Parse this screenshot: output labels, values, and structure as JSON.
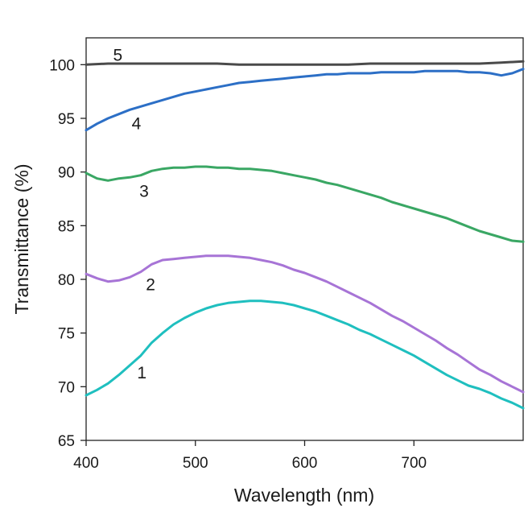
{
  "chart_data": {
    "type": "line",
    "title": "",
    "xlabel": "Wavelength (nm)",
    "ylabel": "Transmittance (%)",
    "xlim": [
      400,
      800
    ],
    "ylim": [
      65,
      102.5
    ],
    "xticks": [
      400,
      500,
      600,
      700
    ],
    "yticks": [
      65,
      70,
      75,
      80,
      85,
      90,
      95,
      100
    ],
    "grid": false,
    "legend": "none",
    "series": [
      {
        "name": "1",
        "color": "#1fbfbf",
        "label_at": [
          451,
          71.3
        ],
        "x": [
          400,
          410,
          420,
          430,
          440,
          450,
          460,
          470,
          480,
          490,
          500,
          510,
          520,
          530,
          540,
          550,
          560,
          570,
          580,
          590,
          600,
          610,
          620,
          630,
          640,
          650,
          660,
          670,
          680,
          690,
          700,
          710,
          720,
          730,
          740,
          750,
          760,
          770,
          780,
          790,
          800
        ],
        "y": [
          69.2,
          69.7,
          70.3,
          71.1,
          72.0,
          72.9,
          74.1,
          75.0,
          75.8,
          76.4,
          76.9,
          77.3,
          77.6,
          77.8,
          77.9,
          78.0,
          78.0,
          77.9,
          77.8,
          77.6,
          77.3,
          77.0,
          76.6,
          76.2,
          75.8,
          75.3,
          74.9,
          74.4,
          73.9,
          73.4,
          72.9,
          72.3,
          71.7,
          71.1,
          70.6,
          70.1,
          69.8,
          69.4,
          68.9,
          68.5,
          68.0
        ]
      },
      {
        "name": "2",
        "color": "#a774d6",
        "label_at": [
          459,
          79.5
        ],
        "x": [
          400,
          410,
          420,
          430,
          440,
          450,
          460,
          470,
          480,
          490,
          500,
          510,
          520,
          530,
          540,
          550,
          560,
          570,
          580,
          590,
          600,
          610,
          620,
          630,
          640,
          650,
          660,
          670,
          680,
          690,
          700,
          710,
          720,
          730,
          740,
          750,
          760,
          770,
          780,
          790,
          800
        ],
        "y": [
          80.5,
          80.1,
          79.8,
          79.9,
          80.2,
          80.7,
          81.4,
          81.8,
          81.9,
          82.0,
          82.1,
          82.2,
          82.2,
          82.2,
          82.1,
          82.0,
          81.8,
          81.6,
          81.3,
          80.9,
          80.6,
          80.2,
          79.8,
          79.3,
          78.8,
          78.3,
          77.8,
          77.2,
          76.6,
          76.1,
          75.5,
          74.9,
          74.3,
          73.6,
          73.0,
          72.3,
          71.6,
          71.1,
          70.5,
          70.0,
          69.5
        ]
      },
      {
        "name": "3",
        "color": "#3aa764",
        "label_at": [
          453,
          88.2
        ],
        "x": [
          400,
          410,
          420,
          430,
          440,
          450,
          460,
          470,
          480,
          490,
          500,
          510,
          520,
          530,
          540,
          550,
          560,
          570,
          580,
          590,
          600,
          610,
          620,
          630,
          640,
          650,
          660,
          670,
          680,
          690,
          700,
          710,
          720,
          730,
          740,
          750,
          760,
          770,
          780,
          790,
          800
        ],
        "y": [
          89.9,
          89.4,
          89.2,
          89.4,
          89.5,
          89.7,
          90.1,
          90.3,
          90.4,
          90.4,
          90.5,
          90.5,
          90.4,
          90.4,
          90.3,
          90.3,
          90.2,
          90.1,
          89.9,
          89.7,
          89.5,
          89.3,
          89.0,
          88.8,
          88.5,
          88.2,
          87.9,
          87.6,
          87.2,
          86.9,
          86.6,
          86.3,
          86.0,
          85.7,
          85.3,
          84.9,
          84.5,
          84.2,
          83.9,
          83.6,
          83.5
        ]
      },
      {
        "name": "4",
        "color": "#2c6fc6",
        "label_at": [
          446,
          94.5
        ],
        "x": [
          400,
          410,
          420,
          430,
          440,
          450,
          460,
          470,
          480,
          490,
          500,
          510,
          520,
          530,
          540,
          550,
          560,
          570,
          580,
          590,
          600,
          610,
          620,
          630,
          640,
          650,
          660,
          670,
          680,
          690,
          700,
          710,
          720,
          730,
          740,
          750,
          760,
          770,
          780,
          790,
          800
        ],
        "y": [
          93.9,
          94.5,
          95.0,
          95.4,
          95.8,
          96.1,
          96.4,
          96.7,
          97.0,
          97.3,
          97.5,
          97.7,
          97.9,
          98.1,
          98.3,
          98.4,
          98.5,
          98.6,
          98.7,
          98.8,
          98.9,
          99.0,
          99.1,
          99.1,
          99.2,
          99.2,
          99.2,
          99.3,
          99.3,
          99.3,
          99.3,
          99.4,
          99.4,
          99.4,
          99.4,
          99.3,
          99.3,
          99.2,
          99.0,
          99.2,
          99.6
        ]
      },
      {
        "name": "5",
        "color": "#4a4a4a",
        "label_at": [
          429,
          100.9
        ],
        "x": [
          400,
          420,
          440,
          460,
          480,
          500,
          520,
          540,
          560,
          580,
          600,
          620,
          640,
          660,
          680,
          700,
          720,
          740,
          760,
          780,
          800
        ],
        "y": [
          100.0,
          100.1,
          100.1,
          100.1,
          100.1,
          100.1,
          100.1,
          100.0,
          100.0,
          100.0,
          100.0,
          100.0,
          100.0,
          100.1,
          100.1,
          100.1,
          100.1,
          100.1,
          100.1,
          100.2,
          100.3
        ]
      }
    ]
  }
}
